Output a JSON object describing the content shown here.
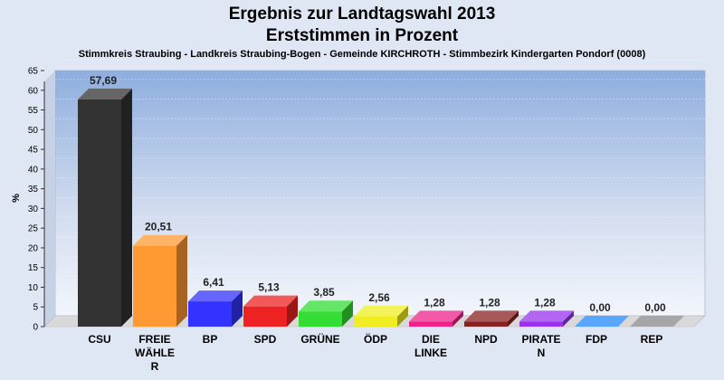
{
  "title": "Ergebnis zur Landtagswahl 2013",
  "subtitle_main": "Erststimmen in Prozent",
  "subtitle_detail": "Stimmkreis Straubing - Landkreis Straubing-Bogen - Gemeinde KIRCHROTH - Stimmbezirk Kindergarten Pondorf (0008)",
  "chart_data": {
    "type": "bar",
    "title": "Ergebnis zur Landtagswahl 2013",
    "subtitle": "Erststimmen in Prozent",
    "xlabel": "",
    "ylabel": "%",
    "ylim": [
      0,
      65
    ],
    "yticks": [
      0,
      5,
      10,
      15,
      20,
      25,
      30,
      35,
      40,
      45,
      50,
      55,
      60,
      65
    ],
    "grid": true,
    "categories": [
      "CSU",
      "FREIE WÄHLER",
      "BP",
      "SPD",
      "GRÜNE",
      "ÖDP",
      "DIE LINKE",
      "NPD",
      "PIRATEN",
      "FDP",
      "REP"
    ],
    "category_label_lines": [
      [
        "CSU"
      ],
      [
        "FREIE",
        "WÄHLE",
        "R"
      ],
      [
        "BP"
      ],
      [
        "SPD"
      ],
      [
        "GRÜNE"
      ],
      [
        "ÖDP"
      ],
      [
        "DIE",
        "LINKE"
      ],
      [
        "NPD"
      ],
      [
        "PIRATE",
        "N"
      ],
      [
        "FDP"
      ],
      [
        "REP"
      ]
    ],
    "values": [
      57.69,
      20.51,
      6.41,
      5.13,
      3.85,
      2.56,
      1.28,
      1.28,
      1.28,
      0.0,
      0.0
    ],
    "data_labels": [
      "57,69",
      "20,51",
      "6,41",
      "5,13",
      "3,85",
      "2,56",
      "1,28",
      "1,28",
      "1,28",
      "0,00",
      "0,00"
    ],
    "colors": [
      "#333333",
      "#ff9933",
      "#3333ff",
      "#ee2222",
      "#33dd33",
      "#eeee22",
      "#ee2288",
      "#882222",
      "#9933ee",
      "#2288ff",
      "#888888"
    ]
  }
}
